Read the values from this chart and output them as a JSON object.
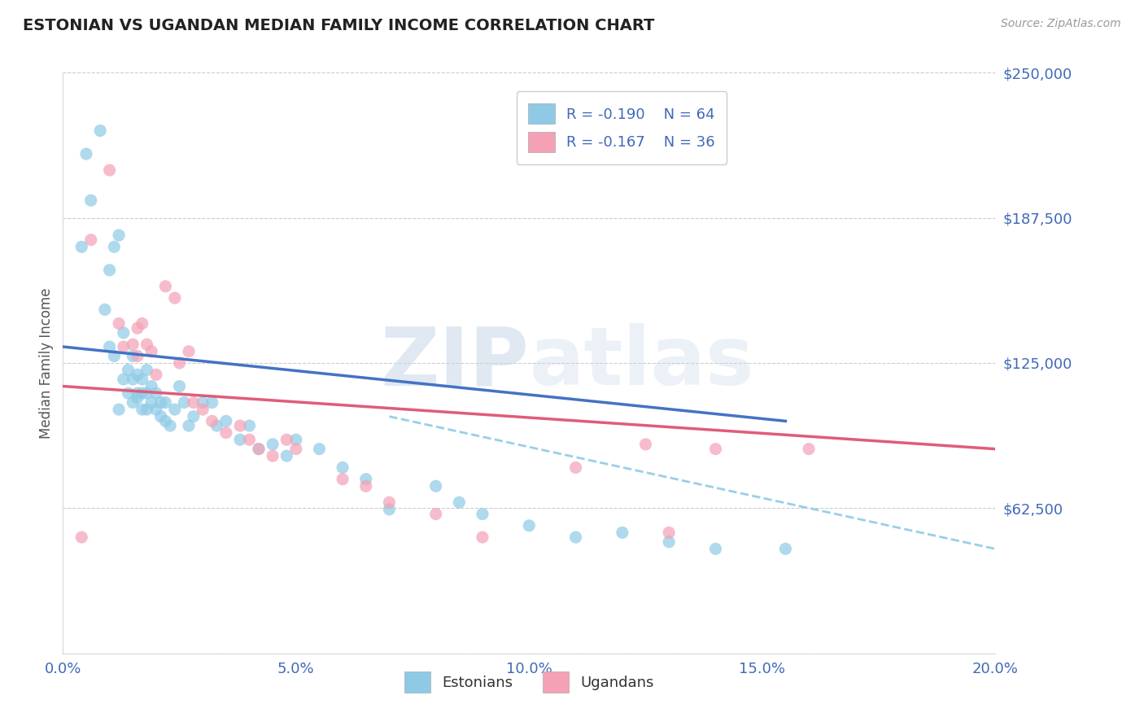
{
  "title": "ESTONIAN VS UGANDAN MEDIAN FAMILY INCOME CORRELATION CHART",
  "source_text": "Source: ZipAtlas.com",
  "ylabel": "Median Family Income",
  "xlabel": "",
  "watermark_zip": "ZIP",
  "watermark_atlas": "atlas",
  "xmin": 0.0,
  "xmax": 0.2,
  "ymin": 0,
  "ymax": 250000,
  "yticks": [
    0,
    62500,
    125000,
    187500,
    250000
  ],
  "ytick_labels": [
    "",
    "$62,500",
    "$125,000",
    "$187,500",
    "$250,000"
  ],
  "xticks": [
    0.0,
    0.05,
    0.1,
    0.15,
    0.2
  ],
  "xtick_labels": [
    "0.0%",
    "5.0%",
    "10.0%",
    "15.0%",
    "20.0%"
  ],
  "estonian_color": "#8ecae6",
  "ugandan_color": "#f4a0b5",
  "estonian_line_color": "#4472c4",
  "ugandan_line_color": "#e05c7a",
  "dashed_line_color": "#8ecae6",
  "legend_R1": "R = -0.190",
  "legend_N1": "N = 64",
  "legend_R2": "R = -0.167",
  "legend_N2": "N = 36",
  "legend_label1": "Estonians",
  "legend_label2": "Ugandans",
  "background_color": "#ffffff",
  "grid_color": "#cccccc",
  "title_color": "#222222",
  "axis_label_color": "#555555",
  "tick_label_color": "#4169b8",
  "R_value_color": "#4169b8",
  "estonian_scatter_x": [
    0.004,
    0.005,
    0.006,
    0.008,
    0.009,
    0.01,
    0.01,
    0.011,
    0.011,
    0.012,
    0.012,
    0.013,
    0.013,
    0.014,
    0.014,
    0.015,
    0.015,
    0.015,
    0.016,
    0.016,
    0.016,
    0.017,
    0.017,
    0.017,
    0.018,
    0.018,
    0.018,
    0.019,
    0.019,
    0.02,
    0.02,
    0.021,
    0.021,
    0.022,
    0.022,
    0.023,
    0.024,
    0.025,
    0.026,
    0.027,
    0.028,
    0.03,
    0.032,
    0.033,
    0.035,
    0.038,
    0.04,
    0.042,
    0.045,
    0.048,
    0.05,
    0.055,
    0.06,
    0.065,
    0.07,
    0.08,
    0.085,
    0.09,
    0.1,
    0.11,
    0.12,
    0.13,
    0.14,
    0.155
  ],
  "estonian_scatter_y": [
    175000,
    215000,
    195000,
    225000,
    148000,
    165000,
    132000,
    175000,
    128000,
    180000,
    105000,
    138000,
    118000,
    122000,
    112000,
    118000,
    108000,
    128000,
    110000,
    112000,
    120000,
    105000,
    112000,
    118000,
    105000,
    112000,
    122000,
    108000,
    115000,
    105000,
    112000,
    102000,
    108000,
    100000,
    108000,
    98000,
    105000,
    115000,
    108000,
    98000,
    102000,
    108000,
    108000,
    98000,
    100000,
    92000,
    98000,
    88000,
    90000,
    85000,
    92000,
    88000,
    80000,
    75000,
    62000,
    72000,
    65000,
    60000,
    55000,
    50000,
    52000,
    48000,
    45000,
    45000
  ],
  "ugandan_scatter_x": [
    0.004,
    0.006,
    0.01,
    0.012,
    0.013,
    0.015,
    0.016,
    0.016,
    0.017,
    0.018,
    0.019,
    0.02,
    0.022,
    0.024,
    0.025,
    0.027,
    0.028,
    0.03,
    0.032,
    0.035,
    0.038,
    0.04,
    0.042,
    0.045,
    0.048,
    0.05,
    0.06,
    0.065,
    0.07,
    0.08,
    0.09,
    0.11,
    0.125,
    0.13,
    0.14,
    0.16
  ],
  "ugandan_scatter_y": [
    50000,
    178000,
    208000,
    142000,
    132000,
    133000,
    140000,
    128000,
    142000,
    133000,
    130000,
    120000,
    158000,
    153000,
    125000,
    130000,
    108000,
    105000,
    100000,
    95000,
    98000,
    92000,
    88000,
    85000,
    92000,
    88000,
    75000,
    72000,
    65000,
    60000,
    50000,
    80000,
    90000,
    52000,
    88000,
    88000
  ],
  "estonian_trend_x": [
    0.0,
    0.155
  ],
  "estonian_trend_y": [
    132000,
    100000
  ],
  "ugandan_trend_x": [
    0.0,
    0.2
  ],
  "ugandan_trend_y": [
    115000,
    88000
  ],
  "dashed_trend_x": [
    0.07,
    0.2
  ],
  "dashed_trend_y": [
    102000,
    45000
  ]
}
